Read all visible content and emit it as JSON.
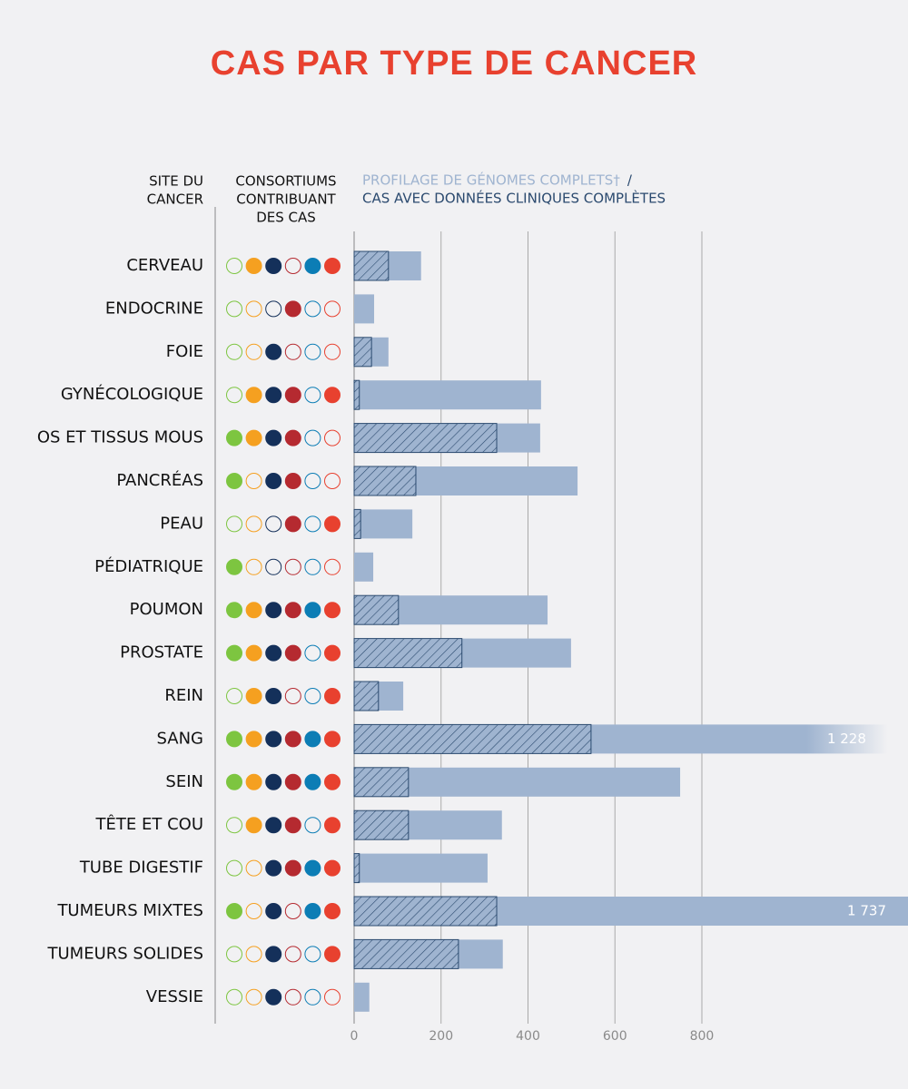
{
  "chart_data": {
    "type": "bar",
    "title": "CAS PAR TYPE DE CANCER",
    "header_site": [
      "SITE DU",
      "CANCER"
    ],
    "header_consortia": [
      "CONSORTIUMS",
      "CONTRIBUANT",
      "DES CAS"
    ],
    "legend_separator": "/",
    "categories": [
      "CERVEAU",
      "ENDOCRINE",
      "FOIE",
      "GYNÉCOLOGIQUE",
      "OS ET TISSUS MOUS",
      "PANCRÉAS",
      "PEAU",
      "PÉDIATRIQUE",
      "POUMON",
      "PROSTATE",
      "REIN",
      "SANG",
      "SEIN",
      "TÊTE ET COU",
      "TUBE DIGESTIF",
      "TUMEURS MIXTES",
      "TUMEURS SOLIDES",
      "VESSIE"
    ],
    "series": [
      {
        "name": "PROFILAGE DE GÉNOMES COMPLETS†",
        "color": "#9fb4d0",
        "values": [
          154,
          46,
          79,
          430,
          428,
          514,
          134,
          44,
          445,
          499,
          113,
          1228,
          750,
          340,
          307,
          1737,
          342,
          35
        ],
        "value_labels": [
          null,
          null,
          null,
          null,
          null,
          null,
          null,
          null,
          null,
          null,
          null,
          "1 228",
          null,
          null,
          null,
          "1 737",
          null,
          null
        ]
      },
      {
        "name": "CAS AVEC DONNÉES CLINIQUES COMPLÈTES",
        "color": "#2b4a6f",
        "values": [
          79,
          0,
          40,
          12,
          328,
          142,
          15,
          0,
          102,
          248,
          56,
          545,
          125,
          125,
          12,
          328,
          240,
          0
        ]
      }
    ],
    "consortium_colors": [
      "#7dc540",
      "#f5a020",
      "#14305a",
      "#b52a30",
      "#0c7db5",
      "#e8412f"
    ],
    "consortia": [
      [
        0,
        1,
        1,
        0,
        1,
        1
      ],
      [
        0,
        0,
        0,
        1,
        0,
        0
      ],
      [
        0,
        0,
        1,
        0,
        0,
        0
      ],
      [
        0,
        1,
        1,
        1,
        0,
        1
      ],
      [
        1,
        1,
        1,
        1,
        0,
        0
      ],
      [
        1,
        0,
        1,
        1,
        0,
        0
      ],
      [
        0,
        0,
        0,
        1,
        0,
        1
      ],
      [
        1,
        0,
        0,
        0,
        0,
        0
      ],
      [
        1,
        1,
        1,
        1,
        1,
        1
      ],
      [
        1,
        1,
        1,
        1,
        0,
        1
      ],
      [
        0,
        1,
        1,
        0,
        0,
        1
      ],
      [
        1,
        1,
        1,
        1,
        1,
        1
      ],
      [
        1,
        1,
        1,
        1,
        1,
        1
      ],
      [
        0,
        1,
        1,
        1,
        0,
        1
      ],
      [
        0,
        0,
        1,
        1,
        1,
        1
      ],
      [
        1,
        0,
        1,
        0,
        1,
        1
      ],
      [
        0,
        0,
        1,
        0,
        0,
        1
      ],
      [
        0,
        0,
        1,
        0,
        0,
        0
      ]
    ],
    "xlim": [
      0,
      1270
    ],
    "xticks": [
      0,
      200,
      400,
      600,
      800
    ],
    "grid": true
  }
}
